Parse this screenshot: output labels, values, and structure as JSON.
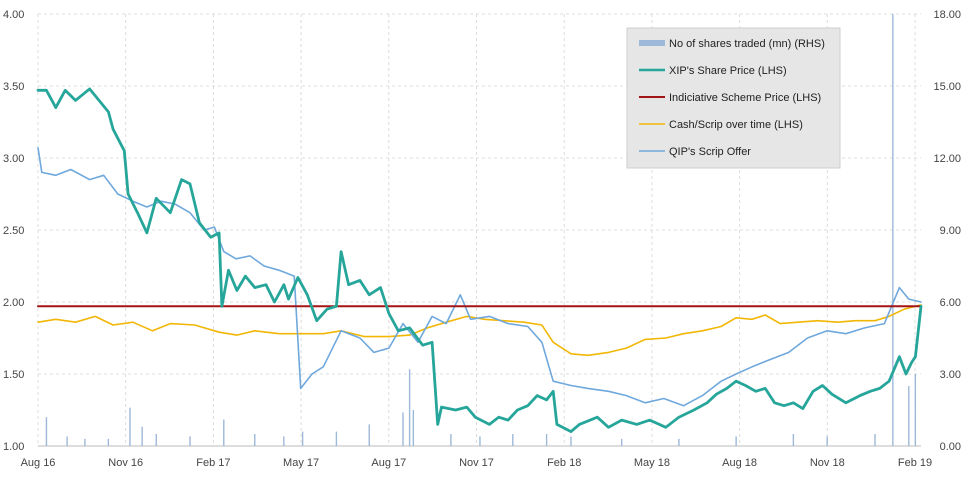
{
  "chart_data": {
    "type": "line",
    "grid": true,
    "legend_position": "top-right",
    "x_ticks": [
      "Aug 16",
      "Nov 16",
      "Feb 17",
      "May 17",
      "Aug 17",
      "Nov 17",
      "Feb 18",
      "May 18",
      "Aug 18",
      "Nov 18",
      "Feb 19"
    ],
    "x_range": [
      "2016-08-01",
      "2019-02-28"
    ],
    "y_left": {
      "range": [
        1.0,
        4.0
      ],
      "ticks": [
        "1.00",
        "1.50",
        "2.00",
        "2.50",
        "3.00",
        "3.50",
        "4.00"
      ]
    },
    "y_right": {
      "range": [
        0,
        18
      ],
      "ticks": [
        "0.00",
        "3.00",
        "6.00",
        "9.00",
        "12.00",
        "15.00",
        "18.00"
      ]
    },
    "series": [
      {
        "name": "No of shares traded (mn) (RHS)",
        "type": "bar",
        "axis": "right",
        "color": "#9db8d9",
        "points": [
          [
            "2016-08-10",
            1.2
          ],
          [
            "2016-09-01",
            0.4
          ],
          [
            "2016-09-20",
            0.3
          ],
          [
            "2016-10-15",
            0.3
          ],
          [
            "2016-11-07",
            1.6
          ],
          [
            "2016-11-20",
            0.8
          ],
          [
            "2016-12-05",
            0.5
          ],
          [
            "2017-01-10",
            0.4
          ],
          [
            "2017-02-15",
            1.1
          ],
          [
            "2017-03-20",
            0.5
          ],
          [
            "2017-04-20",
            0.4
          ],
          [
            "2017-05-10",
            0.6
          ],
          [
            "2017-06-15",
            0.6
          ],
          [
            "2017-07-20",
            0.9
          ],
          [
            "2017-08-25",
            1.4
          ],
          [
            "2017-09-01",
            3.2
          ],
          [
            "2017-09-05",
            1.5
          ],
          [
            "2017-10-15",
            0.5
          ],
          [
            "2017-11-15",
            0.4
          ],
          [
            "2017-12-20",
            0.5
          ],
          [
            "2018-01-25",
            0.5
          ],
          [
            "2018-02-20",
            0.4
          ],
          [
            "2018-04-15",
            0.3
          ],
          [
            "2018-06-15",
            0.3
          ],
          [
            "2018-08-15",
            0.4
          ],
          [
            "2018-10-15",
            0.5
          ],
          [
            "2018-11-20",
            0.4
          ],
          [
            "2019-01-10",
            0.5
          ],
          [
            "2019-01-29",
            18.0
          ],
          [
            "2019-02-15",
            2.5
          ],
          [
            "2019-02-22",
            3.0
          ]
        ]
      },
      {
        "name": "XIP's Share Price (LHS)",
        "type": "line",
        "axis": "left",
        "color": "#26a69a",
        "width": 2.8,
        "points": [
          [
            "2016-08-01",
            3.47
          ],
          [
            "2016-08-10",
            3.47
          ],
          [
            "2016-08-20",
            3.35
          ],
          [
            "2016-08-30",
            3.47
          ],
          [
            "2016-09-10",
            3.4
          ],
          [
            "2016-09-25",
            3.48
          ],
          [
            "2016-10-05",
            3.4
          ],
          [
            "2016-10-15",
            3.32
          ],
          [
            "2016-10-20",
            3.2
          ],
          [
            "2016-11-01",
            3.05
          ],
          [
            "2016-11-05",
            2.75
          ],
          [
            "2016-11-15",
            2.62
          ],
          [
            "2016-11-25",
            2.48
          ],
          [
            "2016-12-05",
            2.72
          ],
          [
            "2016-12-20",
            2.62
          ],
          [
            "2017-01-01",
            2.85
          ],
          [
            "2017-01-10",
            2.82
          ],
          [
            "2017-01-20",
            2.55
          ],
          [
            "2017-02-01",
            2.45
          ],
          [
            "2017-02-10",
            2.48
          ],
          [
            "2017-02-13",
            1.97
          ],
          [
            "2017-02-20",
            2.22
          ],
          [
            "2017-03-01",
            2.08
          ],
          [
            "2017-03-10",
            2.18
          ],
          [
            "2017-03-20",
            2.1
          ],
          [
            "2017-04-01",
            2.12
          ],
          [
            "2017-04-10",
            2.0
          ],
          [
            "2017-04-20",
            2.12
          ],
          [
            "2017-04-25",
            2.02
          ],
          [
            "2017-05-05",
            2.17
          ],
          [
            "2017-05-15",
            2.05
          ],
          [
            "2017-05-25",
            1.87
          ],
          [
            "2017-06-05",
            1.95
          ],
          [
            "2017-06-15",
            1.97
          ],
          [
            "2017-06-20",
            2.35
          ],
          [
            "2017-06-28",
            2.12
          ],
          [
            "2017-07-10",
            2.15
          ],
          [
            "2017-07-20",
            2.05
          ],
          [
            "2017-08-01",
            2.1
          ],
          [
            "2017-08-10",
            1.92
          ],
          [
            "2017-08-20",
            1.8
          ],
          [
            "2017-09-01",
            1.82
          ],
          [
            "2017-09-15",
            1.7
          ],
          [
            "2017-09-25",
            1.72
          ],
          [
            "2017-10-01",
            1.15
          ],
          [
            "2017-10-05",
            1.27
          ],
          [
            "2017-10-20",
            1.25
          ],
          [
            "2017-11-01",
            1.27
          ],
          [
            "2017-11-10",
            1.2
          ],
          [
            "2017-11-25",
            1.15
          ],
          [
            "2017-12-05",
            1.2
          ],
          [
            "2017-12-15",
            1.18
          ],
          [
            "2017-12-25",
            1.25
          ],
          [
            "2018-01-05",
            1.28
          ],
          [
            "2018-01-15",
            1.35
          ],
          [
            "2018-01-25",
            1.32
          ],
          [
            "2018-02-01",
            1.38
          ],
          [
            "2018-02-05",
            1.15
          ],
          [
            "2018-02-20",
            1.1
          ],
          [
            "2018-03-01",
            1.15
          ],
          [
            "2018-03-20",
            1.2
          ],
          [
            "2018-04-01",
            1.13
          ],
          [
            "2018-04-15",
            1.18
          ],
          [
            "2018-05-01",
            1.15
          ],
          [
            "2018-05-15",
            1.18
          ],
          [
            "2018-06-01",
            1.13
          ],
          [
            "2018-06-15",
            1.2
          ],
          [
            "2018-07-01",
            1.25
          ],
          [
            "2018-07-15",
            1.3
          ],
          [
            "2018-07-25",
            1.36
          ],
          [
            "2018-08-05",
            1.4
          ],
          [
            "2018-08-15",
            1.45
          ],
          [
            "2018-08-25",
            1.42
          ],
          [
            "2018-09-05",
            1.38
          ],
          [
            "2018-09-15",
            1.4
          ],
          [
            "2018-09-25",
            1.3
          ],
          [
            "2018-10-05",
            1.28
          ],
          [
            "2018-10-15",
            1.3
          ],
          [
            "2018-10-25",
            1.26
          ],
          [
            "2018-11-05",
            1.38
          ],
          [
            "2018-11-15",
            1.42
          ],
          [
            "2018-11-25",
            1.36
          ],
          [
            "2018-12-10",
            1.3
          ],
          [
            "2018-12-25",
            1.35
          ],
          [
            "2019-01-05",
            1.38
          ],
          [
            "2019-01-15",
            1.4
          ],
          [
            "2019-01-25",
            1.45
          ],
          [
            "2019-02-05",
            1.62
          ],
          [
            "2019-02-12",
            1.5
          ],
          [
            "2019-02-18",
            1.58
          ],
          [
            "2019-02-22",
            1.62
          ],
          [
            "2019-02-28",
            1.97
          ]
        ]
      },
      {
        "name": "Indiciative Scheme Price (LHS)",
        "type": "line",
        "axis": "left",
        "color": "#a31515",
        "width": 2.0,
        "points": [
          [
            "2016-08-01",
            1.97
          ],
          [
            "2019-02-28",
            1.97
          ]
        ]
      },
      {
        "name": "Cash/Scrip over time (LHS)",
        "type": "line",
        "axis": "left",
        "color": "#f2b705",
        "width": 1.6,
        "points": [
          [
            "2016-08-01",
            1.86
          ],
          [
            "2016-08-20",
            1.88
          ],
          [
            "2016-09-10",
            1.86
          ],
          [
            "2016-10-01",
            1.9
          ],
          [
            "2016-10-20",
            1.84
          ],
          [
            "2016-11-10",
            1.86
          ],
          [
            "2016-12-01",
            1.8
          ],
          [
            "2016-12-20",
            1.85
          ],
          [
            "2017-01-15",
            1.84
          ],
          [
            "2017-02-10",
            1.79
          ],
          [
            "2017-03-01",
            1.77
          ],
          [
            "2017-03-20",
            1.8
          ],
          [
            "2017-04-15",
            1.78
          ],
          [
            "2017-05-05",
            1.78
          ],
          [
            "2017-06-01",
            1.78
          ],
          [
            "2017-06-20",
            1.8
          ],
          [
            "2017-07-15",
            1.76
          ],
          [
            "2017-08-10",
            1.76
          ],
          [
            "2017-09-01",
            1.77
          ],
          [
            "2017-09-20",
            1.82
          ],
          [
            "2017-10-10",
            1.86
          ],
          [
            "2017-11-01",
            1.9
          ],
          [
            "2017-11-20",
            1.88
          ],
          [
            "2017-12-10",
            1.87
          ],
          [
            "2018-01-01",
            1.86
          ],
          [
            "2018-01-20",
            1.84
          ],
          [
            "2018-02-01",
            1.72
          ],
          [
            "2018-02-20",
            1.64
          ],
          [
            "2018-03-10",
            1.63
          ],
          [
            "2018-04-01",
            1.65
          ],
          [
            "2018-04-20",
            1.68
          ],
          [
            "2018-05-10",
            1.74
          ],
          [
            "2018-06-01",
            1.75
          ],
          [
            "2018-06-20",
            1.78
          ],
          [
            "2018-07-10",
            1.8
          ],
          [
            "2018-07-30",
            1.83
          ],
          [
            "2018-08-15",
            1.89
          ],
          [
            "2018-09-01",
            1.88
          ],
          [
            "2018-09-15",
            1.91
          ],
          [
            "2018-10-01",
            1.85
          ],
          [
            "2018-10-20",
            1.86
          ],
          [
            "2018-11-10",
            1.87
          ],
          [
            "2018-12-01",
            1.86
          ],
          [
            "2018-12-20",
            1.87
          ],
          [
            "2019-01-10",
            1.87
          ],
          [
            "2019-01-25",
            1.9
          ],
          [
            "2019-02-10",
            1.95
          ],
          [
            "2019-02-28",
            1.98
          ]
        ]
      },
      {
        "name": "QIP's Scrip Offer",
        "type": "line",
        "axis": "left",
        "color": "#6fa8dc",
        "width": 1.6,
        "points": [
          [
            "2016-08-01",
            3.07
          ],
          [
            "2016-08-05",
            2.9
          ],
          [
            "2016-08-20",
            2.88
          ],
          [
            "2016-09-05",
            2.92
          ],
          [
            "2016-09-25",
            2.85
          ],
          [
            "2016-10-10",
            2.88
          ],
          [
            "2016-10-25",
            2.75
          ],
          [
            "2016-11-10",
            2.7
          ],
          [
            "2016-11-25",
            2.66
          ],
          [
            "2016-12-10",
            2.7
          ],
          [
            "2016-12-25",
            2.68
          ],
          [
            "2017-01-10",
            2.62
          ],
          [
            "2017-01-25",
            2.5
          ],
          [
            "2017-02-05",
            2.52
          ],
          [
            "2017-02-15",
            2.35
          ],
          [
            "2017-02-28",
            2.3
          ],
          [
            "2017-03-15",
            2.32
          ],
          [
            "2017-03-30",
            2.25
          ],
          [
            "2017-04-15",
            2.22
          ],
          [
            "2017-05-01",
            2.18
          ],
          [
            "2017-05-08",
            1.4
          ],
          [
            "2017-05-20",
            1.5
          ],
          [
            "2017-06-01",
            1.55
          ],
          [
            "2017-06-20",
            1.8
          ],
          [
            "2017-07-10",
            1.75
          ],
          [
            "2017-07-25",
            1.65
          ],
          [
            "2017-08-10",
            1.68
          ],
          [
            "2017-08-25",
            1.85
          ],
          [
            "2017-09-10",
            1.72
          ],
          [
            "2017-09-25",
            1.9
          ],
          [
            "2017-10-10",
            1.85
          ],
          [
            "2017-10-25",
            2.05
          ],
          [
            "2017-11-05",
            1.88
          ],
          [
            "2017-11-25",
            1.9
          ],
          [
            "2017-12-15",
            1.85
          ],
          [
            "2018-01-05",
            1.83
          ],
          [
            "2018-01-20",
            1.72
          ],
          [
            "2018-02-01",
            1.45
          ],
          [
            "2018-02-20",
            1.42
          ],
          [
            "2018-03-10",
            1.4
          ],
          [
            "2018-04-01",
            1.38
          ],
          [
            "2018-04-20",
            1.35
          ],
          [
            "2018-05-10",
            1.3
          ],
          [
            "2018-05-30",
            1.33
          ],
          [
            "2018-06-20",
            1.28
          ],
          [
            "2018-07-10",
            1.35
          ],
          [
            "2018-07-30",
            1.45
          ],
          [
            "2018-08-15",
            1.5
          ],
          [
            "2018-09-01",
            1.55
          ],
          [
            "2018-09-20",
            1.6
          ],
          [
            "2018-10-10",
            1.65
          ],
          [
            "2018-10-30",
            1.75
          ],
          [
            "2018-11-20",
            1.8
          ],
          [
            "2018-12-10",
            1.78
          ],
          [
            "2018-12-30",
            1.82
          ],
          [
            "2019-01-20",
            1.85
          ],
          [
            "2019-02-05",
            2.1
          ],
          [
            "2019-02-15",
            2.02
          ],
          [
            "2019-02-28",
            2.0
          ]
        ]
      }
    ]
  }
}
